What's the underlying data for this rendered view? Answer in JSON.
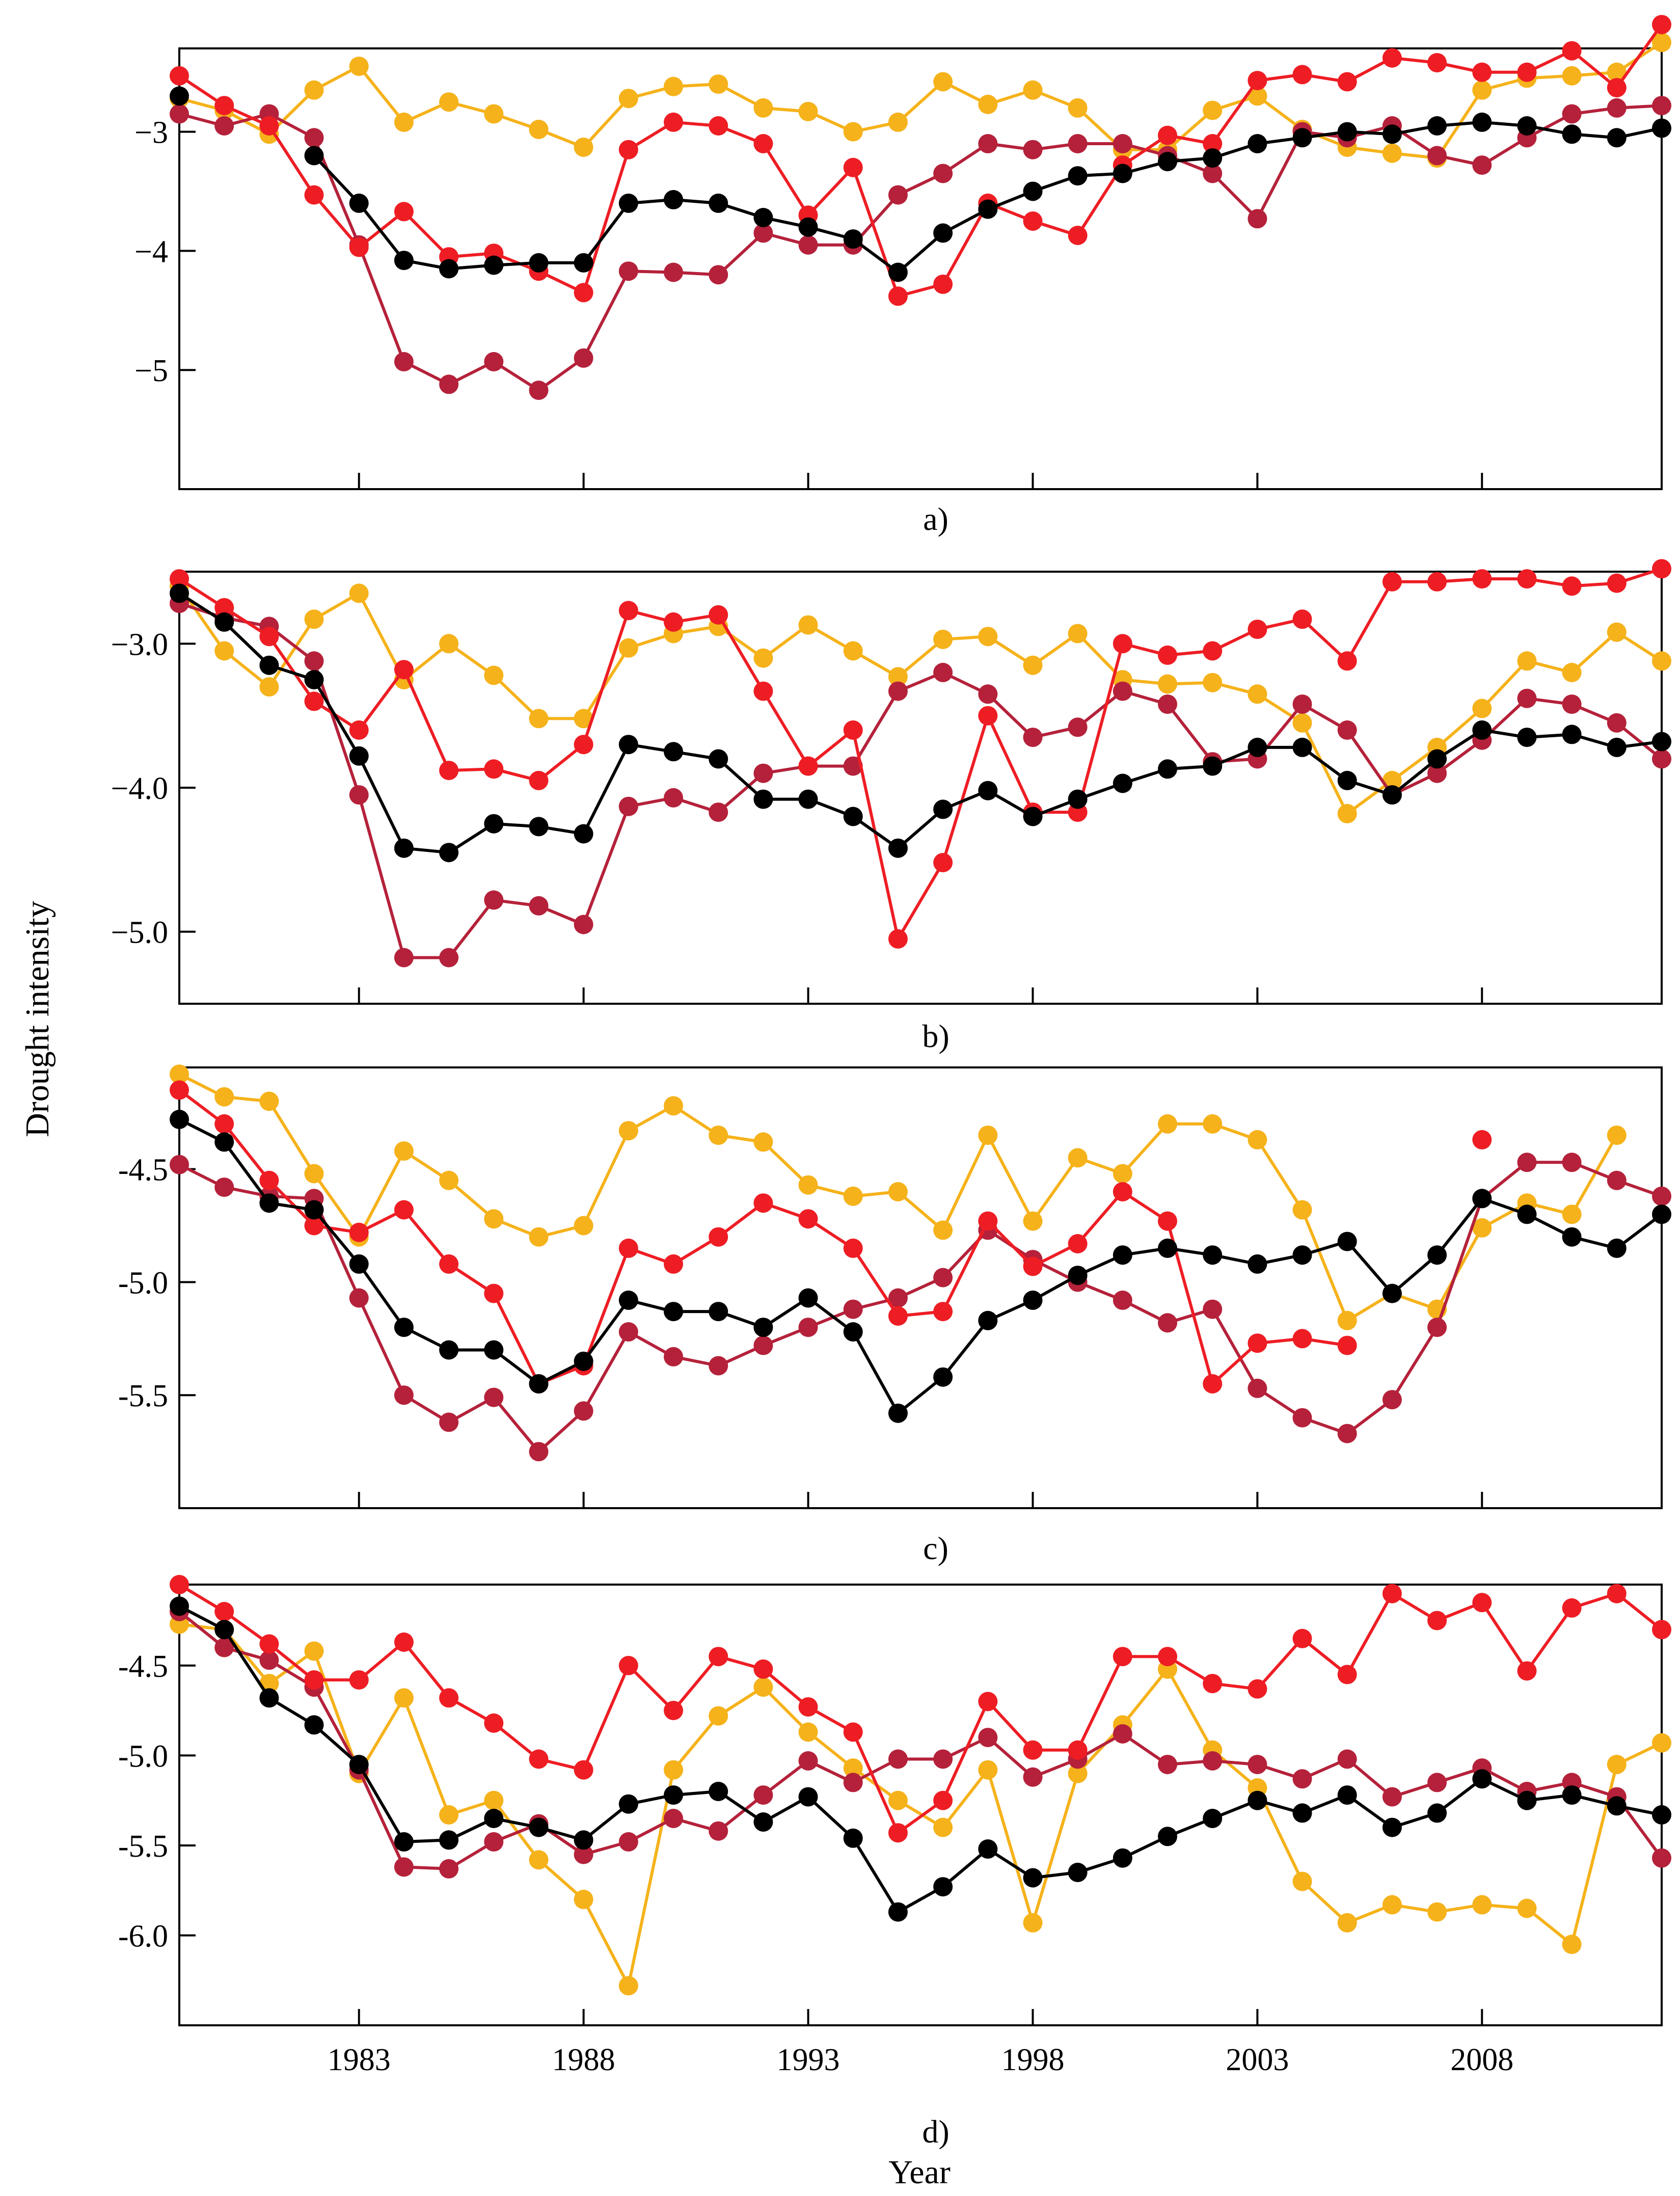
{
  "figure": {
    "ylabel": "Drought intensity",
    "xlabel": "Year",
    "x_ticks": [
      1983,
      1988,
      1993,
      1998,
      2003,
      2008
    ]
  },
  "colors": {
    "black": "#000000",
    "crimson": "#b5213a",
    "red": "#ee1d24",
    "yellow": "#f5b21a"
  },
  "chart_data": [
    {
      "type": "line",
      "panel_label": "a)",
      "xlim": [
        1979,
        2012
      ],
      "ylim": [
        -6,
        -2.3
      ],
      "yticks": [
        -3,
        -4,
        -5
      ],
      "ytick_labels": [
        "−3",
        "−4",
        "−5"
      ],
      "x": [
        1979,
        1980,
        1981,
        1982,
        1983,
        1984,
        1985,
        1986,
        1987,
        1988,
        1989,
        1990,
        1991,
        1992,
        1993,
        1994,
        1995,
        1996,
        1997,
        1998,
        1999,
        2000,
        2001,
        2002,
        2003,
        2004,
        2005,
        2006,
        2007,
        2008,
        2009,
        2010,
        2011,
        2012
      ],
      "series": [
        {
          "name": "black",
          "values": [
            -2.7,
            null,
            null,
            -3.2,
            -3.6,
            -4.08,
            -4.15,
            -4.12,
            -4.1,
            -4.1,
            -3.6,
            -3.57,
            -3.6,
            -3.72,
            -3.8,
            -3.9,
            -4.18,
            -3.85,
            -3.65,
            -3.5,
            -3.37,
            -3.35,
            -3.25,
            -3.22,
            -3.1,
            -3.05,
            -3.0,
            -3.02,
            -2.95,
            -2.92,
            -2.95,
            -3.02,
            -3.05,
            -2.97
          ]
        },
        {
          "name": "crimson",
          "values": [
            -2.85,
            -2.95,
            -2.85,
            -3.05,
            -3.95,
            -4.93,
            -5.12,
            -4.93,
            -5.17,
            -4.9,
            -4.17,
            -4.18,
            -4.2,
            -3.85,
            -3.95,
            -3.95,
            -3.53,
            -3.35,
            -3.1,
            -3.15,
            -3.1,
            -3.1,
            -3.2,
            -3.35,
            -3.73,
            -3.0,
            -3.05,
            -2.95,
            -3.2,
            -3.28,
            -3.05,
            -2.85,
            -2.8,
            -2.78
          ]
        },
        {
          "name": "red",
          "values": [
            -2.53,
            -2.78,
            -2.95,
            -3.53,
            -3.97,
            -3.67,
            -4.05,
            -4.02,
            -4.17,
            -4.35,
            -3.15,
            -2.92,
            -2.95,
            -3.1,
            -3.7,
            -3.3,
            -4.38,
            -4.28,
            -3.6,
            -3.75,
            -3.87,
            -3.28,
            -3.03,
            -3.1,
            -2.57,
            -2.52,
            -2.58,
            -2.38,
            -2.42,
            -2.5,
            -2.5,
            -2.32,
            -2.63,
            -2.1
          ]
        },
        {
          "name": "yellow",
          "values": [
            -2.72,
            -2.82,
            -3.02,
            -2.65,
            -2.45,
            -2.92,
            -2.75,
            -2.85,
            -2.98,
            -3.13,
            -2.72,
            -2.62,
            -2.6,
            -2.8,
            -2.83,
            -3.0,
            -2.92,
            -2.58,
            -2.77,
            -2.65,
            -2.8,
            -3.15,
            -3.15,
            -2.82,
            -2.7,
            -2.98,
            -3.13,
            -3.18,
            -3.22,
            -2.65,
            -2.55,
            -2.53,
            -2.5,
            -2.25
          ]
        }
      ]
    },
    {
      "type": "line",
      "panel_label": "b)",
      "xlim": [
        1979,
        2012
      ],
      "ylim": [
        -5.5,
        -2.5
      ],
      "yticks": [
        -3.0,
        -4.0,
        -5.0
      ],
      "ytick_labels": [
        "−3.0",
        "−4.0",
        "−5.0"
      ],
      "x": [
        1979,
        1980,
        1981,
        1982,
        1983,
        1984,
        1985,
        1986,
        1987,
        1988,
        1989,
        1990,
        1991,
        1992,
        1993,
        1994,
        1995,
        1996,
        1997,
        1998,
        1999,
        2000,
        2001,
        2002,
        2003,
        2004,
        2005,
        2006,
        2007,
        2008,
        2009,
        2010,
        2011,
        2012
      ],
      "series": [
        {
          "name": "black",
          "values": [
            -2.65,
            -2.85,
            -3.15,
            -3.25,
            -3.78,
            -4.42,
            -4.45,
            -4.25,
            -4.27,
            -4.32,
            -3.7,
            -3.75,
            -3.8,
            -4.08,
            -4.08,
            -4.2,
            -4.42,
            -4.15,
            -4.02,
            -4.2,
            -4.08,
            -3.97,
            -3.87,
            -3.85,
            -3.72,
            -3.72,
            -3.95,
            -4.05,
            -3.8,
            -3.6,
            -3.65,
            -3.63,
            -3.72,
            -3.68
          ]
        },
        {
          "name": "crimson",
          "values": [
            -2.72,
            -2.82,
            -2.88,
            -3.12,
            -4.05,
            -5.18,
            -5.18,
            -4.78,
            -4.82,
            -4.95,
            -4.13,
            -4.07,
            -4.17,
            -3.9,
            -3.85,
            -3.85,
            -3.33,
            -3.2,
            -3.35,
            -3.65,
            -3.58,
            -3.33,
            -3.42,
            -3.82,
            -3.8,
            -3.42,
            -3.6,
            -4.05,
            -3.9,
            -3.67,
            -3.38,
            -3.42,
            -3.55,
            -3.8
          ]
        },
        {
          "name": "red",
          "values": [
            -2.55,
            -2.75,
            -2.95,
            -3.4,
            -3.6,
            -3.18,
            -3.88,
            -3.87,
            -3.95,
            -3.7,
            -2.77,
            -2.85,
            -2.8,
            -3.33,
            -3.85,
            -3.6,
            -5.05,
            -4.52,
            -3.5,
            -4.17,
            -4.17,
            -3.0,
            -3.08,
            -3.05,
            -2.9,
            -2.83,
            -3.12,
            -2.57,
            -2.57,
            -2.55,
            -2.55,
            -2.6,
            -2.58,
            -2.48
          ]
        },
        {
          "name": "yellow",
          "values": [
            -2.6,
            -3.05,
            -3.3,
            -2.83,
            -2.65,
            -3.25,
            -3.0,
            -3.22,
            -3.52,
            -3.52,
            -3.03,
            -2.93,
            -2.88,
            -3.1,
            -2.87,
            -3.05,
            -3.23,
            -2.97,
            -2.95,
            -3.15,
            -2.93,
            -3.25,
            -3.28,
            -3.27,
            -3.35,
            -3.55,
            -4.18,
            -3.95,
            -3.72,
            -3.45,
            -3.12,
            -3.2,
            -2.92,
            -3.12
          ]
        }
      ]
    },
    {
      "type": "line",
      "panel_label": "c)",
      "xlim": [
        1979,
        2012
      ],
      "ylim": [
        -6.0,
        -4.05
      ],
      "yticks": [
        -4.5,
        -5.0,
        -5.5
      ],
      "ytick_labels": [
        "-4.5",
        "-5.0",
        "-5.5"
      ],
      "x": [
        1979,
        1980,
        1981,
        1982,
        1983,
        1984,
        1985,
        1986,
        1987,
        1988,
        1989,
        1990,
        1991,
        1992,
        1993,
        1994,
        1995,
        1996,
        1997,
        1998,
        1999,
        2000,
        2001,
        2002,
        2003,
        2004,
        2005,
        2006,
        2007,
        2008,
        2009,
        2010,
        2011,
        2012
      ],
      "series": [
        {
          "name": "black",
          "values": [
            -4.28,
            -4.38,
            -4.65,
            -4.68,
            -4.92,
            -5.2,
            -5.3,
            -5.3,
            -5.45,
            -5.35,
            -5.08,
            -5.13,
            -5.13,
            -5.2,
            -5.07,
            -5.22,
            -5.58,
            -5.42,
            -5.17,
            -5.08,
            -4.97,
            -4.88,
            -4.85,
            -4.88,
            -4.92,
            -4.88,
            -4.82,
            -5.05,
            -4.88,
            -4.63,
            -4.7,
            -4.8,
            -4.85,
            -4.7
          ]
        },
        {
          "name": "crimson",
          "values": [
            -4.48,
            -4.58,
            -4.62,
            -4.63,
            -5.07,
            -5.5,
            -5.62,
            -5.51,
            -5.75,
            -5.57,
            -5.22,
            -5.33,
            -5.37,
            -5.28,
            -5.2,
            -5.12,
            -5.07,
            -4.98,
            -4.77,
            -4.9,
            -5.0,
            -5.08,
            -5.18,
            -5.12,
            -5.47,
            -5.6,
            -5.67,
            -5.52,
            -5.2,
            -4.63,
            -4.47,
            -4.47,
            -4.55,
            -4.62
          ]
        },
        {
          "name": "red",
          "values": [
            -4.15,
            -4.3,
            -4.55,
            -4.75,
            -4.78,
            -4.68,
            -4.92,
            -5.05,
            -5.45,
            -5.37,
            -4.85,
            -4.92,
            -4.8,
            -4.65,
            -4.72,
            -4.85,
            -5.15,
            -5.13,
            -4.73,
            -4.93,
            -4.83,
            -4.6,
            -4.73,
            -5.45,
            -5.27,
            -5.25,
            -5.28,
            null,
            null,
            -4.37,
            null,
            null,
            null,
            null
          ]
        },
        {
          "name": "yellow",
          "values": [
            -4.08,
            -4.18,
            -4.2,
            -4.52,
            -4.8,
            -4.42,
            -4.55,
            -4.72,
            -4.8,
            -4.75,
            -4.33,
            -4.22,
            -4.35,
            -4.38,
            -4.57,
            -4.62,
            -4.6,
            -4.77,
            -4.35,
            -4.73,
            -4.45,
            -4.52,
            -4.3,
            -4.3,
            -4.37,
            -4.68,
            -5.17,
            -5.05,
            -5.12,
            -4.76,
            -4.65,
            -4.7,
            -4.35,
            null
          ]
        }
      ]
    },
    {
      "type": "line",
      "panel_label": "d)",
      "xlim": [
        1979,
        2012
      ],
      "ylim": [
        -6.5,
        -4.05
      ],
      "yticks": [
        -4.5,
        -5.0,
        -5.5,
        -6.0
      ],
      "ytick_labels": [
        "-4.5",
        "-5.0",
        "-5.5",
        "-6.0"
      ],
      "x": [
        1979,
        1980,
        1981,
        1982,
        1983,
        1984,
        1985,
        1986,
        1987,
        1988,
        1989,
        1990,
        1991,
        1992,
        1993,
        1994,
        1995,
        1996,
        1997,
        1998,
        1999,
        2000,
        2001,
        2002,
        2003,
        2004,
        2005,
        2006,
        2007,
        2008,
        2009,
        2010,
        2011,
        2012
      ],
      "series": [
        {
          "name": "black",
          "values": [
            -4.17,
            -4.3,
            -4.68,
            -4.83,
            -5.05,
            -5.48,
            -5.47,
            -5.35,
            -5.4,
            -5.47,
            -5.27,
            -5.22,
            -5.2,
            -5.37,
            -5.23,
            -5.46,
            -5.87,
            -5.73,
            -5.52,
            -5.68,
            -5.65,
            -5.57,
            -5.45,
            -5.35,
            -5.25,
            -5.32,
            -5.22,
            -5.4,
            -5.32,
            -5.13,
            -5.25,
            -5.22,
            -5.28,
            -5.33
          ]
        },
        {
          "name": "crimson",
          "values": [
            -4.2,
            -4.4,
            -4.47,
            -4.62,
            -5.08,
            -5.62,
            -5.63,
            -5.48,
            -5.38,
            -5.55,
            -5.48,
            -5.35,
            -5.42,
            -5.22,
            -5.03,
            -5.15,
            -5.02,
            -5.02,
            -4.9,
            -5.12,
            -5.02,
            -4.88,
            -5.05,
            -5.03,
            -5.05,
            -5.13,
            -5.02,
            -5.23,
            -5.15,
            -5.07,
            -5.2,
            -5.15,
            -5.23,
            -5.57
          ]
        },
        {
          "name": "red",
          "values": [
            -4.05,
            -4.2,
            -4.38,
            -4.58,
            -4.58,
            -4.37,
            -4.68,
            -4.82,
            -5.02,
            -5.08,
            -4.5,
            -4.75,
            -4.45,
            -4.52,
            -4.73,
            -4.87,
            -5.43,
            -5.25,
            -4.7,
            -4.97,
            -4.97,
            -4.45,
            -4.45,
            -4.6,
            -4.63,
            -4.35,
            -4.55,
            -4.1,
            -4.25,
            -4.15,
            -4.53,
            -4.18,
            -4.1,
            -4.3
          ]
        },
        {
          "name": "yellow",
          "values": [
            -4.27,
            -4.3,
            -4.6,
            -4.42,
            -5.1,
            -4.68,
            -5.33,
            -5.25,
            -5.58,
            -5.8,
            -6.28,
            -5.08,
            -4.78,
            -4.62,
            -4.87,
            -5.07,
            -5.25,
            -5.4,
            -5.08,
            -5.93,
            -5.1,
            -4.83,
            -4.52,
            -4.97,
            -5.18,
            -5.7,
            -5.93,
            -5.83,
            -5.87,
            -5.83,
            -5.85,
            -6.05,
            -5.05,
            -4.93
          ]
        }
      ]
    }
  ]
}
